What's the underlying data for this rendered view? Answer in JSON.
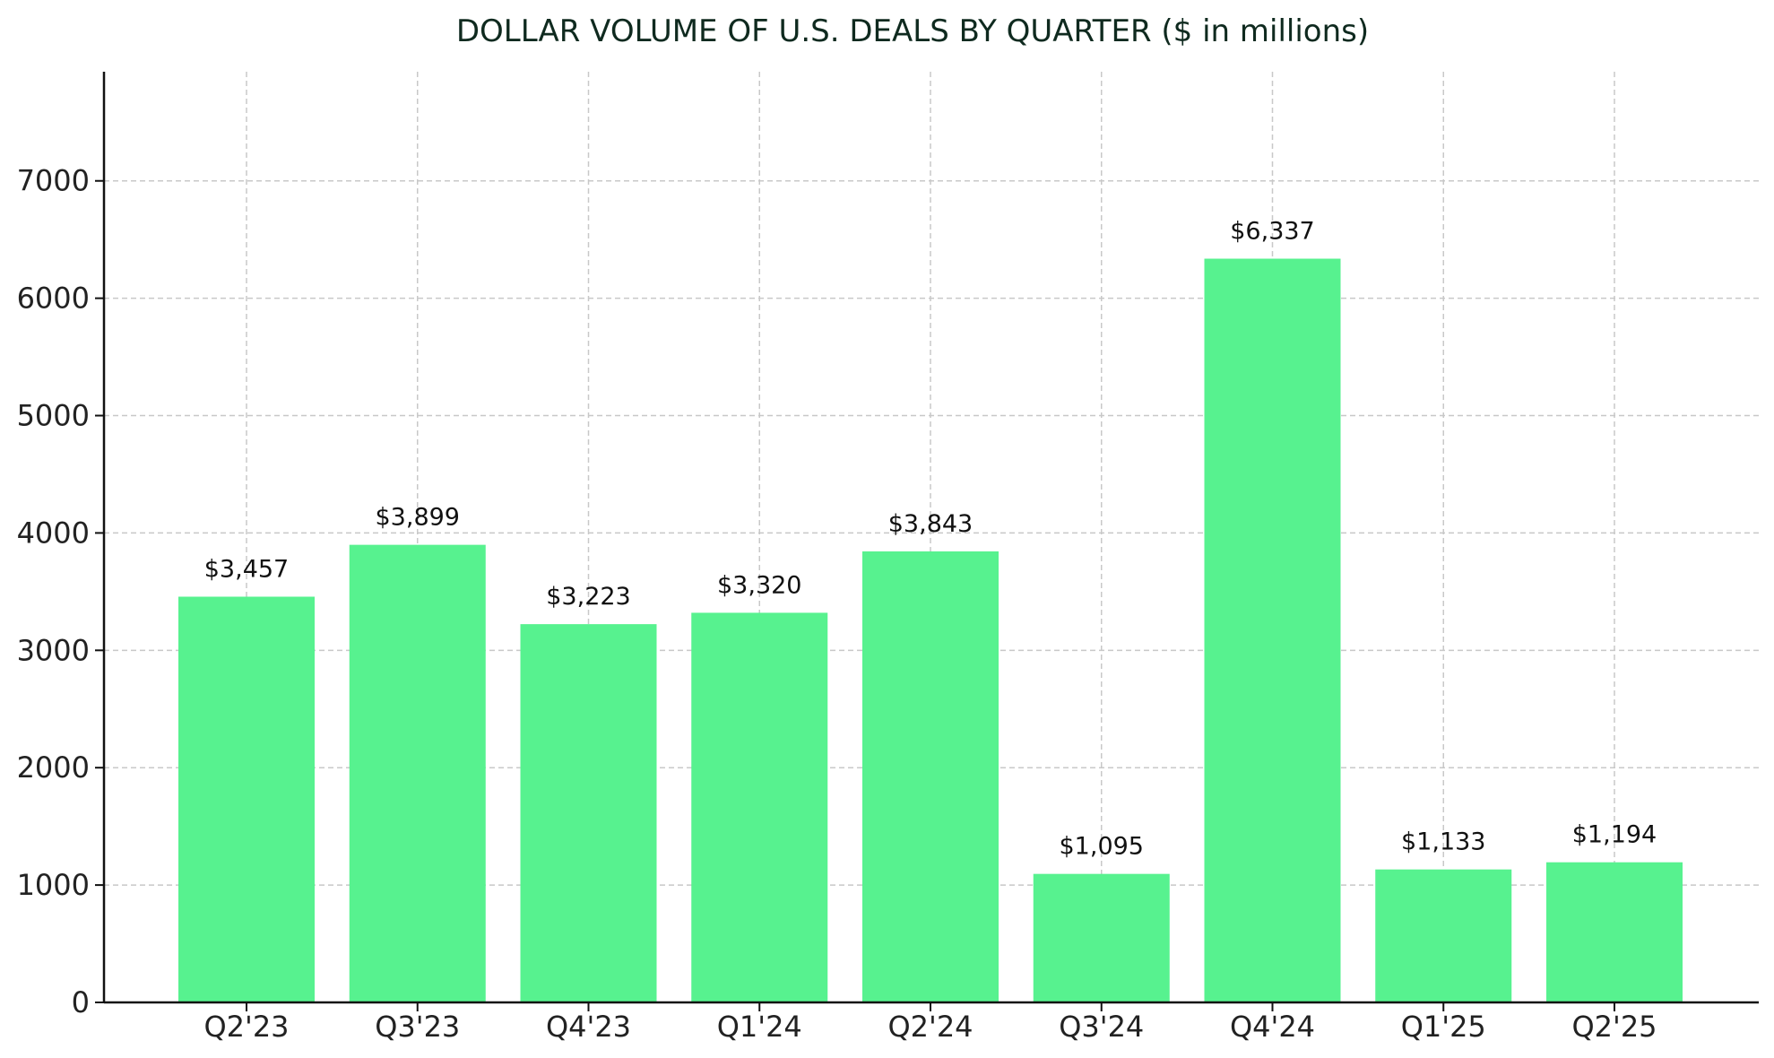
{
  "chart_data": {
    "type": "bar",
    "title": "DOLLAR VOLUME OF U.S. DEALS BY QUARTER ($ in millions)",
    "xlabel": "",
    "ylabel": "",
    "categories": [
      "Q2'23",
      "Q3'23",
      "Q4'23",
      "Q1'24",
      "Q2'24",
      "Q3'24",
      "Q4'24",
      "Q1'25",
      "Q2'25"
    ],
    "values": [
      3457,
      3899,
      3223,
      3320,
      3843,
      1095,
      6337,
      1133,
      1194
    ],
    "data_labels": [
      "$3,457",
      "$3,899",
      "$3,223",
      "$3,320",
      "$3,843",
      "$1,095",
      "$6,337",
      "$1,133",
      "$1,194"
    ],
    "y_ticks": [
      0,
      1000,
      2000,
      3000,
      4000,
      5000,
      6000,
      7000
    ],
    "ylim": [
      0,
      7930
    ],
    "grid": true,
    "bar_color": "#57f28f"
  }
}
